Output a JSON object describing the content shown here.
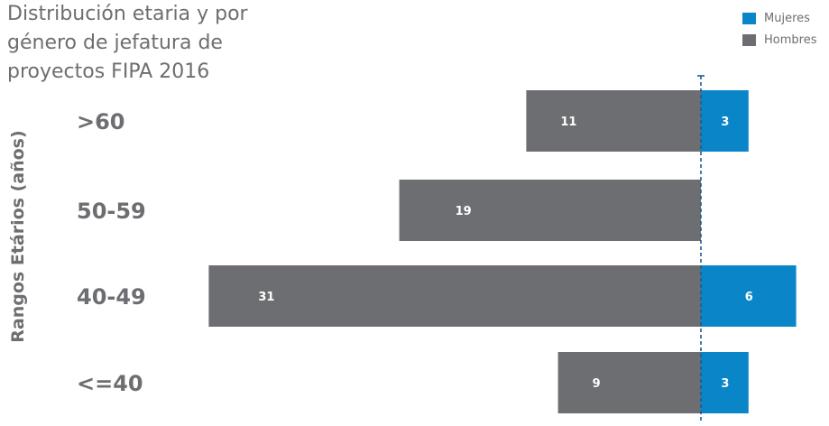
{
  "title_lines": [
    "Distribución etaria y por",
    "género de jefatura de",
    "proyectos FIPA 2016"
  ],
  "chart_data": {
    "type": "bar",
    "orientation": "horizontal-diverging",
    "categories": [
      ">60",
      "50-59",
      "40-49",
      "<=40"
    ],
    "series": [
      {
        "name": "Hombres",
        "values": [
          11,
          19,
          31,
          9
        ],
        "color": "#6d6e71",
        "direction": "left"
      },
      {
        "name": "Mujeres",
        "values": [
          3,
          0,
          6,
          3
        ],
        "color": "#0a86c8",
        "direction": "right"
      }
    ],
    "title": "Distribución etaria y por género de jefatura de proyectos FIPA 2016",
    "xlabel": "",
    "ylabel": "Rangos Etários (años)",
    "legend_position": "top-right",
    "center_line": "dashed",
    "grid": false
  }
}
